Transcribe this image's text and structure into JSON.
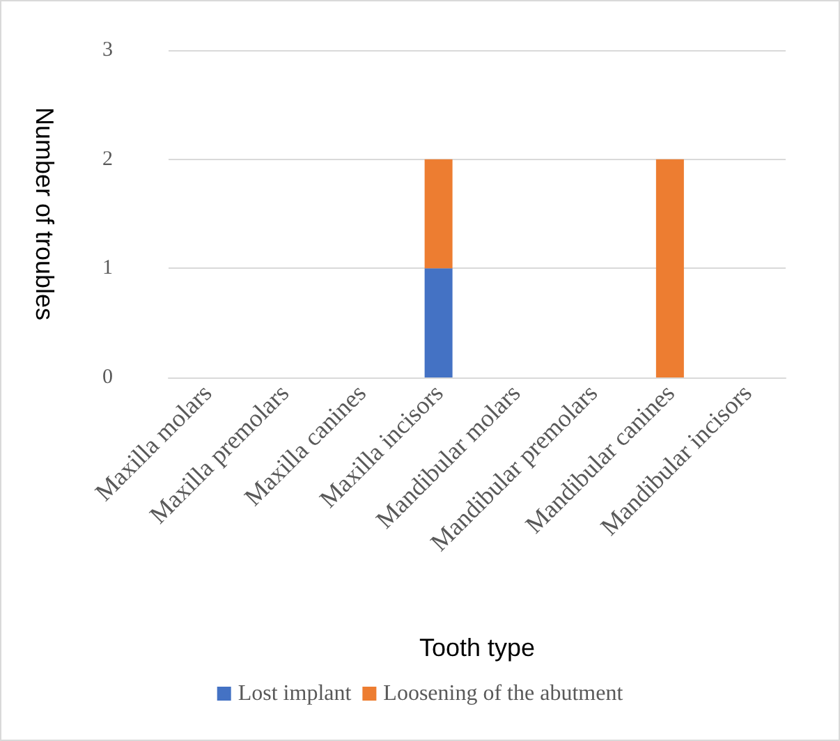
{
  "chart_data": {
    "type": "bar",
    "stacked": true,
    "xlabel": "Tooth type",
    "ylabel": "Number of troubles",
    "categories": [
      "Maxilla molars",
      "Maxilla premolars",
      "Maxilla canines",
      "Maxilla incisors",
      "Mandibular molars",
      "Mandibular premolars",
      "Mandibular canines",
      "Mandibular incisors"
    ],
    "series": [
      {
        "name": "Lost implant",
        "color": "#4472c4",
        "values": [
          0,
          0,
          0,
          1,
          0,
          0,
          0,
          0
        ]
      },
      {
        "name": "Loosening of the abutment",
        "color": "#ed7d31",
        "values": [
          0,
          0,
          0,
          1,
          0,
          0,
          2,
          0
        ]
      }
    ],
    "ylim": [
      0,
      3
    ],
    "yticks": [
      0,
      1,
      2,
      3
    ],
    "grid": "y",
    "legend": "bottom"
  }
}
